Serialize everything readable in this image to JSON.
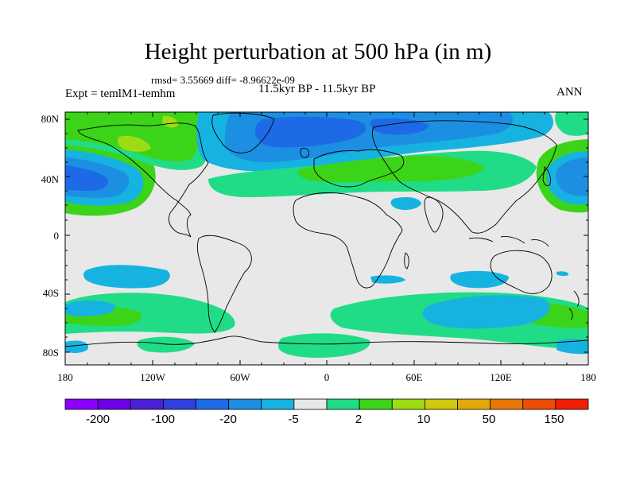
{
  "figure": {
    "title": "Height perturbation at 500 hPa (in m)",
    "stats": "rmsd= 3.55669 diff= -8.96622e-09",
    "left_label": "Expt = temlM1-temhm",
    "center_label": "11.5kyr BP - 11.5kyr BP",
    "right_label": "ANN"
  },
  "axes": {
    "x_ticks": [
      "180",
      "120W",
      "60W",
      "0",
      "60E",
      "120E",
      "180"
    ],
    "y_ticks": [
      "80N",
      "40N",
      "0",
      "40S",
      "80S"
    ]
  },
  "colorbar": {
    "colors": [
      "#8a00ff",
      "#6c00e6",
      "#4a1fd6",
      "#2f3fe0",
      "#1e6ae6",
      "#1c8fe3",
      "#16b3e0",
      "#e8e8e8",
      "#21dc86",
      "#3cd418",
      "#9ddc12",
      "#cfc80c",
      "#e2a80a",
      "#e87806",
      "#ee4c05",
      "#f01e05"
    ],
    "labels": [
      "-200",
      "-100",
      "-20",
      "-5",
      "2",
      "10",
      "50",
      "150"
    ]
  },
  "map": {
    "background": "#e8e8e8",
    "contours": [
      {
        "name": "north-pacific-positive",
        "color": "#3cd418"
      },
      {
        "name": "north-pacific-low",
        "color": "#16b3e0"
      },
      {
        "name": "north-pacific-core",
        "color": "#1c8fe3"
      },
      {
        "name": "north-pacific-center",
        "color": "#1e6ae6"
      },
      {
        "name": "greenland-positive",
        "color": "#21dc86"
      },
      {
        "name": "greenland-high",
        "color": "#3cd418"
      },
      {
        "name": "canada-positive-core",
        "color": "#9ddc12"
      },
      {
        "name": "arctic-low",
        "color": "#16b3e0"
      },
      {
        "name": "arctic-low-core",
        "color": "#1c8fe3"
      },
      {
        "name": "arctic-low-center",
        "color": "#1e6ae6"
      },
      {
        "name": "midlat-positive-belt",
        "color": "#21dc86"
      },
      {
        "name": "midlat-high-europe",
        "color": "#3cd418"
      },
      {
        "name": "middle-east-low",
        "color": "#16b3e0"
      },
      {
        "name": "south-indian-low",
        "color": "#16b3e0"
      },
      {
        "name": "south-pacific-low",
        "color": "#16b3e0"
      },
      {
        "name": "southern-ocean-positive",
        "color": "#21dc86"
      },
      {
        "name": "southern-ocean-high",
        "color": "#3cd418"
      },
      {
        "name": "antarctic-low",
        "color": "#16b3e0"
      },
      {
        "name": "australia-low",
        "color": "#16b3e0"
      }
    ]
  }
}
